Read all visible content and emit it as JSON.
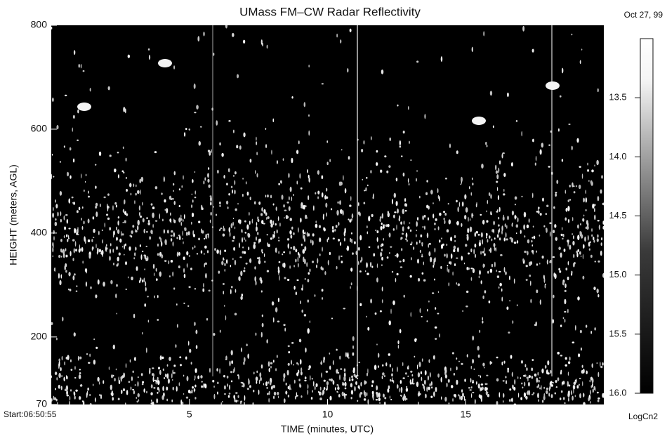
{
  "chart_data": {
    "type": "heatmap",
    "title": "UMass FM–CW Radar Reflectivity",
    "date_label": "Oct 27, 99",
    "xlabel": "TIME (minutes, UTC)",
    "ylabel": "HEIGHT (meters, AGL)",
    "xlim": [
      0,
      20
    ],
    "xticks": [
      {
        "value": 0,
        "label": "Start:06:50:55"
      },
      5,
      10,
      15
    ],
    "ylim": [
      70,
      800
    ],
    "yticks": [
      70,
      200,
      400,
      600,
      800
    ],
    "colorbar": {
      "label": "LogCn2",
      "lim": [
        13.0,
        16.0
      ],
      "ticks": [
        13.5,
        {
          "value": 14,
          "label": "14.0"
        },
        14.5,
        {
          "value": 15,
          "label": "15.0"
        },
        15.5,
        {
          "value": 16,
          "label": "16.0"
        }
      ],
      "colors": [
        "#ffffff",
        "#000000"
      ]
    }
  }
}
